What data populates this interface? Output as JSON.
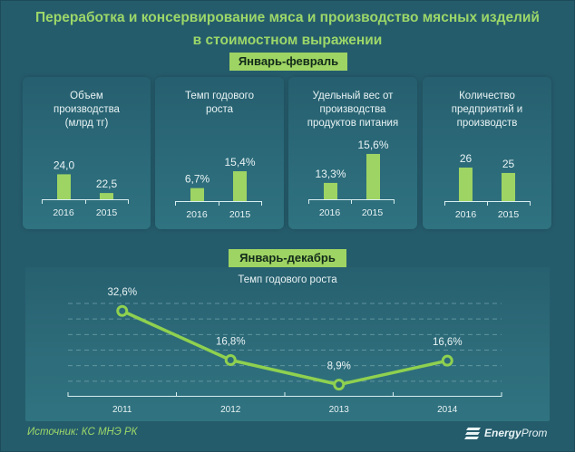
{
  "header": {
    "title_line1": "Переработка  и консервирование  мяса  и производство  мясных  изделий",
    "title_line2": "в стоимостном  выражении"
  },
  "section_jan_feb": {
    "label": "Январь-февраль"
  },
  "section_jan_dec": {
    "label": "Январь-декабрь"
  },
  "footer": {
    "source": "Источник: КС МНЭ РК",
    "logo_bold": "Energy",
    "logo_light": "Prom"
  },
  "colors": {
    "background": "#255c6c",
    "accent": "#9ed463",
    "text": "#e8f3f4",
    "title": "#9cd769"
  },
  "chart_data": [
    {
      "type": "bar",
      "title_lines": [
        "Объем",
        "производства",
        "(млрд тг)"
      ],
      "categories": [
        "2016",
        "2015"
      ],
      "values": [
        24.0,
        22.5
      ],
      "labels": [
        "24,0",
        "22,5"
      ],
      "ylim": [
        22,
        24.9
      ]
    },
    {
      "type": "bar",
      "title_lines": [
        "Темп годового",
        "роста"
      ],
      "categories": [
        "2016",
        "2015"
      ],
      "values": [
        6.7,
        15.4
      ],
      "labels": [
        "6,7%",
        "15,4%"
      ],
      "ylim": [
        0,
        18.7
      ]
    },
    {
      "type": "bar",
      "title_lines": [
        "Удельный вес от",
        "производства",
        "продуктов питания"
      ],
      "categories": [
        "2016",
        "2015"
      ],
      "values": [
        13.3,
        15.6
      ],
      "labels": [
        "13,3%",
        "15,6%"
      ],
      "ylim": [
        12,
        15.74
      ]
    },
    {
      "type": "bar",
      "title_lines": [
        "Количество",
        "предприятий и",
        "производств"
      ],
      "categories": [
        "2016",
        "2015"
      ],
      "values": [
        26,
        25
      ],
      "labels": [
        "26",
        "25"
      ],
      "ylim": [
        19.8,
        26.5
      ]
    },
    {
      "type": "line",
      "title": "Темп годового роста",
      "categories": [
        "2011",
        "2012",
        "2013",
        "2014"
      ],
      "values": [
        32.6,
        16.8,
        8.9,
        16.6
      ],
      "labels": [
        "32,6%",
        "16,8%",
        "8,9%",
        "16,6%"
      ],
      "ylim": [
        5,
        35
      ],
      "grid": true,
      "grid_step": 5
    }
  ]
}
